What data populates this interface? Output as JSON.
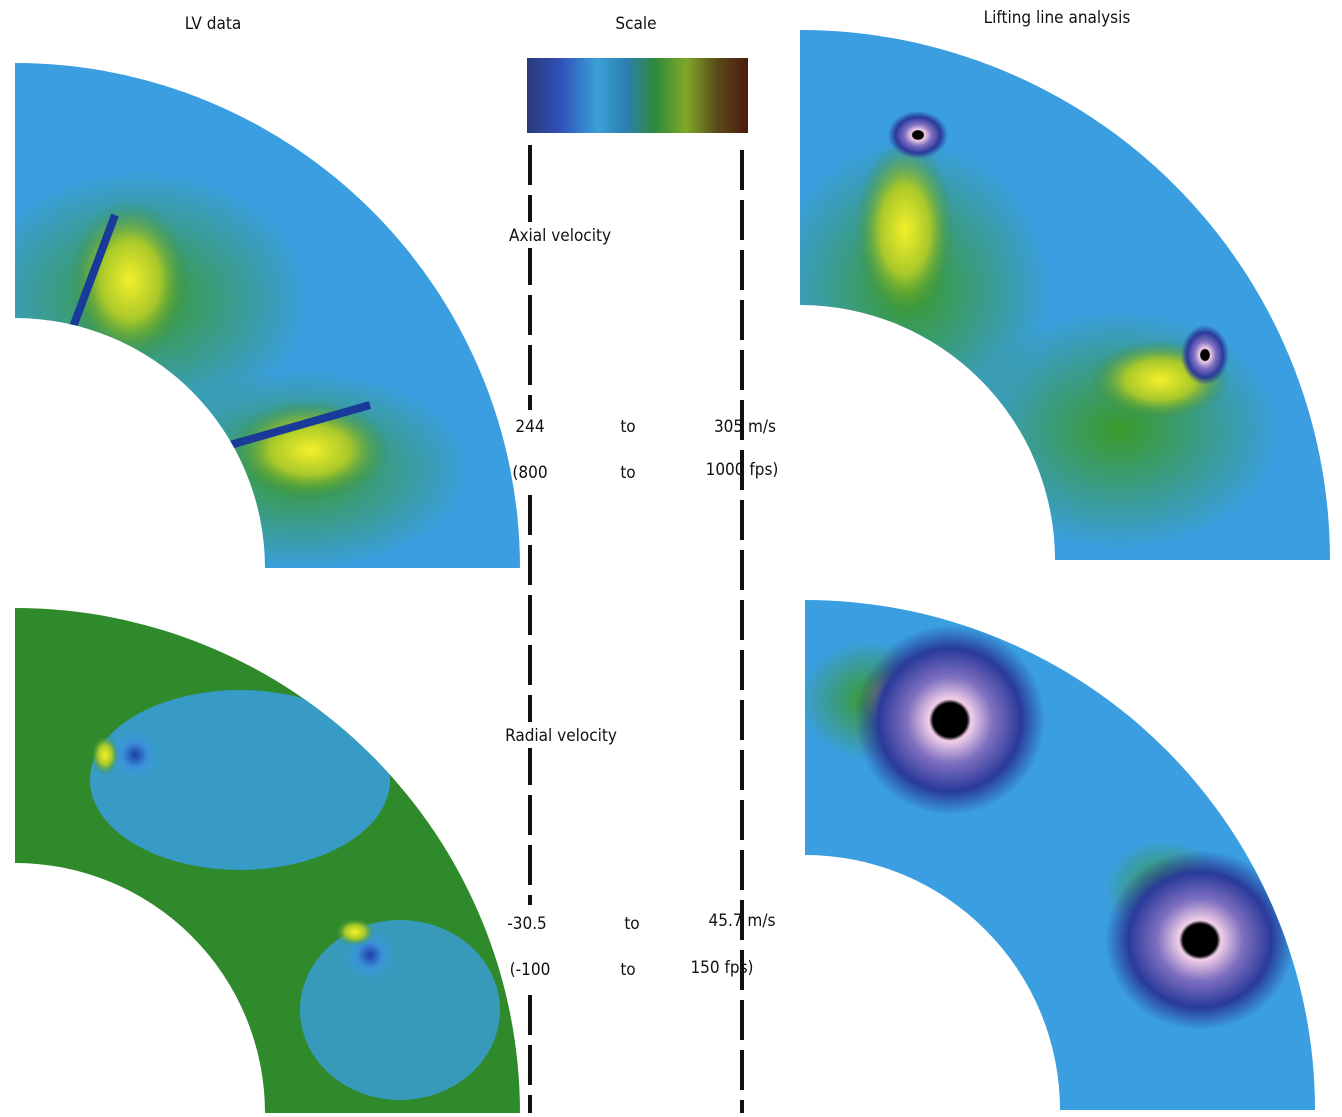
{
  "columns": {
    "left": "LV data",
    "center": "Scale",
    "right": "Lifting line analysis"
  },
  "rows": [
    {
      "label": "Axial velocity",
      "metric": {
        "low": "244",
        "to": "to",
        "high": "305 m/s"
      },
      "imperial": {
        "low": "(800",
        "to": "to",
        "high": "1000 fps)"
      }
    },
    {
      "label": "Radial velocity",
      "metric": {
        "low": "-30.5",
        "to": "to",
        "high": "45.7 m/s"
      },
      "imperial": {
        "low": "(-100",
        "to": "to",
        "high": "150 fps)"
      }
    }
  ]
}
